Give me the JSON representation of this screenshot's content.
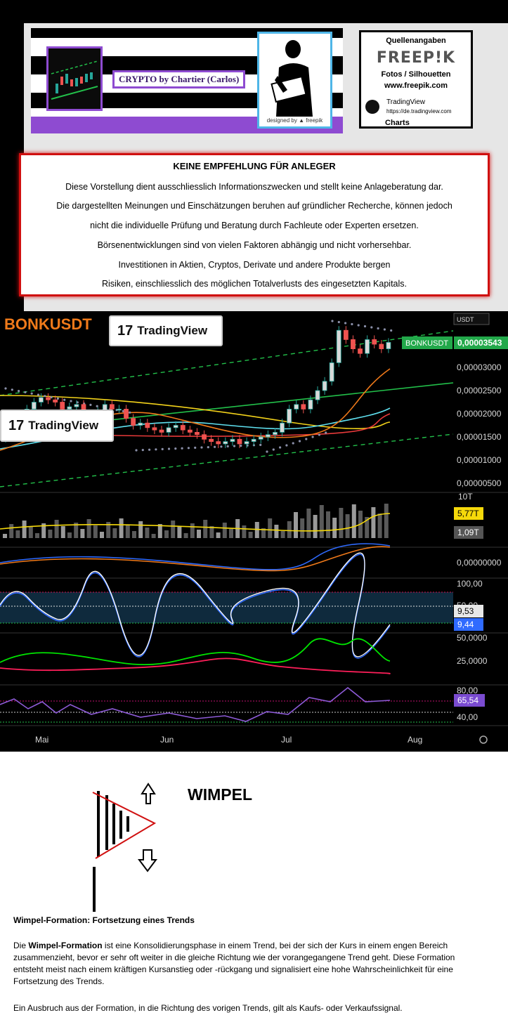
{
  "header": {
    "banner_title": "CRYPTO by Chartier (Carlos)",
    "designed_by": "designed by ▲ freepik",
    "credits": {
      "title": "Quellenangaben",
      "freepik_logo": "FREEP!K",
      "fotos": "Fotos / Silhouetten",
      "freepik_url": "www.freepik.com",
      "tv_name": "TradingView",
      "tv_url": "https://de.tradingview.com",
      "charts": "Charts"
    }
  },
  "disclaimer": {
    "title": "KEINE EMPFEHLUNG FÜR ANLEGER",
    "lines": [
      "Diese Vorstellung dient ausschliesslich Informationszwecken und stellt keine Anlageberatung dar.",
      "Die dargestellten Meinungen und Einschätzungen beruhen auf gründlicher Recherche, können jedoch",
      "nicht die individuelle Prüfung und Beratung durch Fachleute oder Experten ersetzen.",
      "Börsenentwicklungen sind von vielen Faktoren abhängig und nicht vorhersehbar.",
      "Investitionen in Aktien, Cryptos, Derivate  und andere Produkte bergen",
      "Risiken, einschliesslich des möglichen Totalverlusts des eingesetzten Kapitals."
    ]
  },
  "chart": {
    "symbol": "BONKUSDT",
    "currency": "USDT",
    "tv_label": "TradingView",
    "tv_glyph": "17",
    "price_label": "BONKUSDT",
    "price_value": "0,00003543",
    "colors": {
      "up": "#26a69a",
      "down": "#ef5350",
      "price_badge": "#22a84a",
      "volume_ma": "#f5d90a",
      "stoch_k": "#ffffff",
      "stoch_d": "#2f6bff",
      "adx_plus": "#00e400",
      "adx_minus": "#ff1f5a",
      "rsi": "#8e5bd8"
    },
    "settings_icon": "settings-icon"
  },
  "chart_data": {
    "type": "candlestick",
    "x_ticks": [
      "Mai",
      "Jun",
      "Jul",
      "Aug"
    ],
    "price_panel": {
      "y_ticks": [
        "0,00003000",
        "0,00002500",
        "0,00002000",
        "0,00001500",
        "0,00001000",
        "0,00000500"
      ],
      "last_price": 3.543e-05,
      "series_names": [
        "BONKUSDT"
      ],
      "close": [
        1.55e-05,
        1.85e-05,
        2e-05,
        2.1e-05,
        2.25e-05,
        2.35e-05,
        2.3e-05,
        2.25e-05,
        2.1e-05,
        2.15e-05,
        2.2e-05,
        1.95e-05,
        1.9e-05,
        2.05e-05,
        2.2e-05,
        2.1e-05,
        2.1e-05,
        1.9e-05,
        1.75e-05,
        1.8e-05,
        1.7e-05,
        1.65e-05,
        1.6e-05,
        1.7e-05,
        1.75e-05,
        1.65e-05,
        1.6e-05,
        1.55e-05,
        1.45e-05,
        1.4e-05,
        1.35e-05,
        1.4e-05,
        1.45e-05,
        1.35e-05,
        1.4e-05,
        1.45e-05,
        1.5e-05,
        1.55e-05,
        1.6e-05,
        1.8e-05,
        2.1e-05,
        2.2e-05,
        2.1e-05,
        2.3e-05,
        2.5e-05,
        2.7e-05,
        3.1e-05,
        3.8e-05,
        3.6e-05,
        3.4e-05,
        3.3e-05,
        3.6e-05,
        3.5e-05,
        3.4e-05,
        3.54e-05
      ]
    },
    "volume_panel": {
      "labels": [
        "10T",
        "5,77T",
        "1,09T"
      ]
    },
    "macd_panel": {
      "labels": [
        "0,00000000"
      ]
    },
    "stoch_panel": {
      "labels": [
        "100,00",
        "50,00",
        "9,53",
        "9,44"
      ]
    },
    "adx_panel": {
      "labels": [
        "50,0000",
        "25,0000"
      ]
    },
    "rsi_panel": {
      "labels": [
        "80,00",
        "65,54",
        "40,00"
      ]
    }
  },
  "pennant": {
    "title": "WIMPEL"
  },
  "article": {
    "heading": "Wimpel-Formation: Fortsetzung eines Trends",
    "p1_prefix": "Die ",
    "p1_bold": "Wimpel-Formation",
    "p1_rest": " ist eine Konsolidierungsphase in einem Trend, bei der sich der Kurs in einem engen Bereich zusammenzieht, bevor er sehr oft weiter in die gleiche Richtung wie der vorangegangene Trend geht. Diese Formation entsteht meist nach einem kräftigen Kursanstieg oder -rückgang und signalisiert eine hohe Wahrscheinlichkeit für eine Fortsetzung des Trends.",
    "p2": " Ein Ausbruch aus der Formation, in die Richtung des vorigen Trends, gilt als Kaufs- oder Verkaufssignal."
  }
}
